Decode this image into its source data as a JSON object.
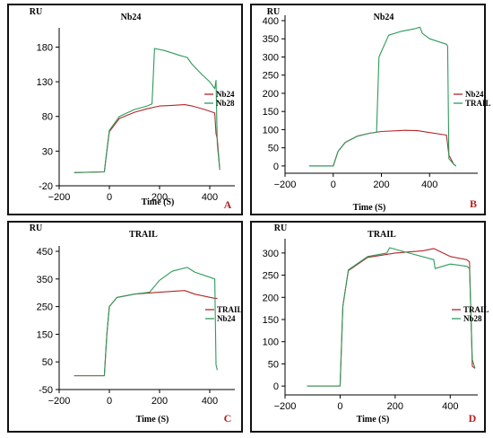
{
  "colors": {
    "red": "#b5262a",
    "green": "#2e9a5a",
    "panel_letter": "#b22222"
  },
  "chart_data": [
    {
      "id": "A",
      "type": "line",
      "title": "Nb24",
      "ylabel": "RU",
      "xlabel": "Time (S)",
      "xlim": [
        -200,
        500
      ],
      "ylim": [
        -20,
        200
      ],
      "xticks": [
        -200,
        0,
        200,
        400
      ],
      "yticks": [
        -20,
        30,
        80,
        130,
        180
      ],
      "xtick_labels": [
        "−200",
        "0",
        "200",
        "400"
      ],
      "ytick_labels": [
        "-20",
        "30",
        "80",
        "130",
        "180"
      ],
      "legend": {
        "position": "right",
        "entries": [
          "Nb24",
          "Nb28"
        ]
      },
      "series": [
        {
          "name": "Nb24",
          "color": "red",
          "points": [
            [
              -140,
              -1
            ],
            [
              -20,
              0
            ],
            [
              -10,
              30
            ],
            [
              0,
              58
            ],
            [
              40,
              77
            ],
            [
              100,
              86
            ],
            [
              150,
              91
            ],
            [
              200,
              95
            ],
            [
              250,
              96
            ],
            [
              300,
              97
            ],
            [
              330,
              95
            ],
            [
              380,
              90
            ],
            [
              420,
              85
            ],
            [
              425,
              55
            ],
            [
              430,
              48
            ],
            [
              440,
              3
            ]
          ]
        },
        {
          "name": "Nb28",
          "color": "green",
          "points": [
            [
              -140,
              -1
            ],
            [
              -20,
              0
            ],
            [
              -10,
              31
            ],
            [
              0,
              60
            ],
            [
              40,
              80
            ],
            [
              100,
              90
            ],
            [
              150,
              95
            ],
            [
              170,
              98
            ],
            [
              180,
              178
            ],
            [
              220,
              175
            ],
            [
              280,
              168
            ],
            [
              310,
              165
            ],
            [
              330,
              155
            ],
            [
              370,
              140
            ],
            [
              400,
              130
            ],
            [
              420,
              120
            ],
            [
              425,
              132
            ],
            [
              430,
              40
            ],
            [
              440,
              3
            ]
          ]
        }
      ]
    },
    {
      "id": "B",
      "type": "line",
      "title": "Nb24",
      "ylabel": "RU",
      "xlabel": "Time (S)",
      "xlim": [
        -200,
        600
      ],
      "ylim": [
        -20,
        400
      ],
      "xticks": [
        -200,
        0,
        200,
        400
      ],
      "yticks": [
        0,
        50,
        100,
        150,
        200,
        250,
        300,
        350,
        400
      ],
      "xtick_labels": [
        "−200",
        "0",
        "200",
        "400"
      ],
      "ytick_labels": [
        "0",
        "50",
        "100",
        "150",
        "200",
        "250",
        "300",
        "350",
        "400"
      ],
      "legend": {
        "position": "right",
        "entries": [
          "Nb24",
          "TRAIL"
        ]
      },
      "series": [
        {
          "name": "Nb24",
          "color": "red",
          "points": [
            [
              -100,
              0
            ],
            [
              0,
              0
            ],
            [
              20,
              40
            ],
            [
              50,
              65
            ],
            [
              100,
              82
            ],
            [
              150,
              90
            ],
            [
              200,
              95
            ],
            [
              300,
              98
            ],
            [
              350,
              97
            ],
            [
              400,
              92
            ],
            [
              470,
              85
            ],
            [
              480,
              30
            ],
            [
              500,
              5
            ],
            [
              510,
              0
            ]
          ]
        },
        {
          "name": "TRAIL",
          "color": "green",
          "points": [
            [
              -100,
              0
            ],
            [
              0,
              0
            ],
            [
              20,
              40
            ],
            [
              50,
              65
            ],
            [
              100,
              82
            ],
            [
              150,
              90
            ],
            [
              180,
              93
            ],
            [
              190,
              300
            ],
            [
              230,
              360
            ],
            [
              280,
              370
            ],
            [
              340,
              378
            ],
            [
              360,
              382
            ],
            [
              370,
              365
            ],
            [
              400,
              350
            ],
            [
              470,
              335
            ],
            [
              475,
              330
            ],
            [
              480,
              20
            ],
            [
              500,
              5
            ],
            [
              510,
              0
            ]
          ]
        }
      ]
    },
    {
      "id": "C",
      "type": "line",
      "title": "TRAIL",
      "ylabel": "RU",
      "xlabel": "Time (S)",
      "xlim": [
        -200,
        500
      ],
      "ylim": [
        -50,
        450
      ],
      "xticks": [
        -200,
        0,
        200,
        400
      ],
      "yticks": [
        -50,
        50,
        150,
        250,
        350,
        450
      ],
      "xtick_labels": [
        "−200",
        "0",
        "200",
        "400"
      ],
      "ytick_labels": [
        "-50",
        "50",
        "150",
        "250",
        "350",
        "450"
      ],
      "legend": {
        "position": "right",
        "entries": [
          "TRAIL",
          "Nb24"
        ]
      },
      "series": [
        {
          "name": "TRAIL",
          "color": "red",
          "points": [
            [
              -140,
              0
            ],
            [
              -20,
              0
            ],
            [
              -10,
              150
            ],
            [
              0,
              250
            ],
            [
              30,
              283
            ],
            [
              100,
              295
            ],
            [
              200,
              302
            ],
            [
              300,
              308
            ],
            [
              340,
              295
            ],
            [
              420,
              280
            ],
            [
              430,
              280
            ]
          ]
        },
        {
          "name": "Nb24",
          "color": "green",
          "points": [
            [
              -140,
              0
            ],
            [
              -20,
              0
            ],
            [
              -10,
              150
            ],
            [
              0,
              250
            ],
            [
              30,
              283
            ],
            [
              100,
              295
            ],
            [
              160,
              302
            ],
            [
              200,
              345
            ],
            [
              250,
              378
            ],
            [
              310,
              392
            ],
            [
              340,
              375
            ],
            [
              420,
              350
            ],
            [
              425,
              40
            ],
            [
              430,
              20
            ]
          ]
        }
      ]
    },
    {
      "id": "D",
      "type": "line",
      "title": "TRAIL",
      "ylabel": "RU",
      "xlabel": "Time (S)",
      "xlim": [
        -200,
        500
      ],
      "ylim": [
        -20,
        320
      ],
      "xticks": [
        -200,
        0,
        200,
        400
      ],
      "yticks": [
        0,
        50,
        100,
        150,
        200,
        250,
        300
      ],
      "xtick_labels": [
        "−200",
        "0",
        "200",
        "400"
      ],
      "ytick_labels": [
        "0",
        "50",
        "100",
        "150",
        "200",
        "250",
        "300"
      ],
      "legend": {
        "position": "right",
        "entries": [
          "TRAIL",
          "Nb28"
        ]
      },
      "series": [
        {
          "name": "TRAIL",
          "color": "red",
          "points": [
            [
              -120,
              0
            ],
            [
              0,
              0
            ],
            [
              10,
              180
            ],
            [
              30,
              260
            ],
            [
              100,
              290
            ],
            [
              200,
              300
            ],
            [
              300,
              305
            ],
            [
              340,
              310
            ],
            [
              400,
              292
            ],
            [
              460,
              285
            ],
            [
              470,
              280
            ],
            [
              480,
              45
            ],
            [
              490,
              40
            ]
          ]
        },
        {
          "name": "Nb28",
          "color": "green",
          "points": [
            [
              -120,
              0
            ],
            [
              0,
              0
            ],
            [
              10,
              180
            ],
            [
              30,
              262
            ],
            [
              100,
              292
            ],
            [
              170,
              300
            ],
            [
              180,
              312
            ],
            [
              250,
              300
            ],
            [
              340,
              285
            ],
            [
              345,
              265
            ],
            [
              400,
              275
            ],
            [
              460,
              270
            ],
            [
              470,
              265
            ],
            [
              480,
              60
            ],
            [
              490,
              40
            ]
          ]
        }
      ]
    }
  ]
}
